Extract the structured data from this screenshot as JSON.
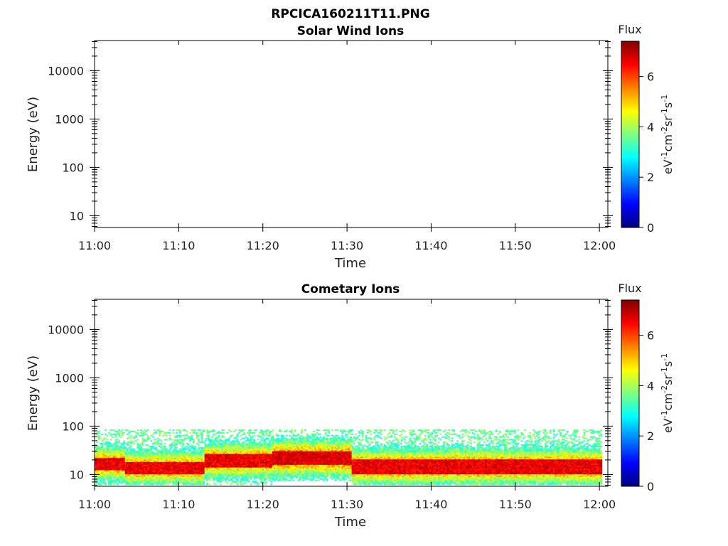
{
  "figure": {
    "title": "RPCICA160211T11.PNG"
  },
  "colorbar": {
    "label": "Flux",
    "unit_base": [
      "eV",
      "cm",
      "sr",
      "s"
    ],
    "unit_exp": [
      "-1",
      "-2",
      "-1",
      "-1"
    ],
    "ticks": [
      "0",
      "2",
      "4",
      "6"
    ],
    "range": [
      0,
      7.4
    ],
    "colors": [
      "#00007f",
      "#0000ff",
      "#007fff",
      "#00ffff",
      "#7fff7f",
      "#ffff00",
      "#ff7f00",
      "#ff0000",
      "#7f0000"
    ]
  },
  "chart_data": [
    {
      "type": "heatmap",
      "title": "Solar Wind Ions",
      "xlabel": "Time",
      "ylabel": "Energy (eV)",
      "xticks": [
        "11:00",
        "11:10",
        "11:20",
        "11:30",
        "11:40",
        "11:50",
        "12:00"
      ],
      "xlim_minutes": [
        0,
        61
      ],
      "yticks": [
        "10",
        "100",
        "1000",
        "10000"
      ],
      "yscale": "log",
      "ylim": [
        5.7,
        42000
      ],
      "data": []
    },
    {
      "type": "heatmap",
      "title": "Cometary Ions",
      "xlabel": "Time",
      "ylabel": "Energy (eV)",
      "xticks": [
        "11:00",
        "11:10",
        "11:20",
        "11:30",
        "11:40",
        "11:50",
        "12:00"
      ],
      "xlim_minutes": [
        0,
        61
      ],
      "yticks": [
        "10",
        "100",
        "1000",
        "10000"
      ],
      "yscale": "log",
      "ylim": [
        5.7,
        42000
      ],
      "segments": [
        {
          "t_start": 0,
          "t_end": 3.5,
          "e_peak_low": 12,
          "e_peak_high": 22,
          "e_min": 6,
          "e_max": 80,
          "peak_flux": 7.0
        },
        {
          "t_start": 3.5,
          "t_end": 13,
          "e_peak_low": 10,
          "e_peak_high": 18,
          "e_min": 6,
          "e_max": 80,
          "peak_flux": 7.0
        },
        {
          "t_start": 13,
          "t_end": 21,
          "e_peak_low": 14,
          "e_peak_high": 26,
          "e_min": 6,
          "e_max": 80,
          "peak_flux": 7.0
        },
        {
          "t_start": 21,
          "t_end": 30.5,
          "e_peak_low": 15,
          "e_peak_high": 30,
          "e_min": 7,
          "e_max": 80,
          "peak_flux": 7.1
        },
        {
          "t_start": 30.5,
          "t_end": 61,
          "e_peak_low": 10,
          "e_peak_high": 20,
          "e_min": 6,
          "e_max": 80,
          "peak_flux": 7.0
        }
      ]
    }
  ]
}
